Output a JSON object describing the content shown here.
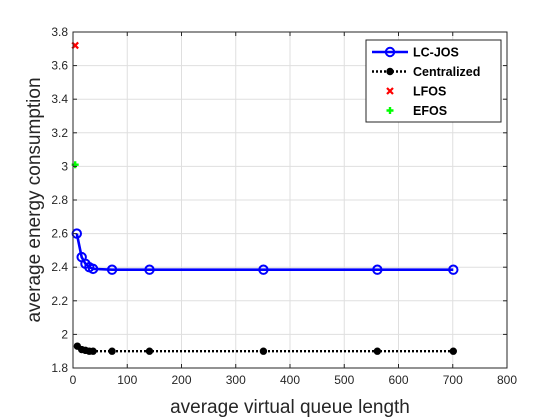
{
  "chart_data": {
    "type": "line",
    "title": "",
    "xlabel": "average virtual queue length",
    "ylabel": "average energy consumption",
    "xlim": [
      0,
      800
    ],
    "ylim": [
      1.8,
      3.8
    ],
    "xticks": [
      0,
      100,
      200,
      300,
      400,
      500,
      600,
      700,
      800
    ],
    "yticks": [
      1.8,
      2,
      2.2,
      2.4,
      2.6,
      2.8,
      3,
      3.2,
      3.4,
      3.6,
      3.8
    ],
    "xtick_labels": [
      "0",
      "100",
      "200",
      "300",
      "400",
      "500",
      "600",
      "700",
      "800"
    ],
    "ytick_labels": [
      "1.8",
      "2",
      "2.2",
      "2.4",
      "2.6",
      "2.8",
      "3",
      "3.2",
      "3.4",
      "3.6",
      "3.8"
    ],
    "grid": true,
    "legend_position": "top-right",
    "series": [
      {
        "name": "LC-JOS",
        "color": "#0000ff",
        "style": "solid-line-circle",
        "x": [
          7,
          16,
          23,
          30,
          37,
          72,
          141,
          351,
          561,
          701
        ],
        "y": [
          2.6,
          2.46,
          2.42,
          2.4,
          2.39,
          2.385,
          2.385,
          2.385,
          2.385,
          2.385
        ]
      },
      {
        "name": "Centralized",
        "color": "#000000",
        "style": "dotted-line-dot",
        "x": [
          8,
          16,
          23,
          30,
          37,
          72,
          141,
          351,
          561,
          701
        ],
        "y": [
          1.93,
          1.91,
          1.905,
          1.9,
          1.9,
          1.9,
          1.9,
          1.9,
          1.9,
          1.9
        ]
      },
      {
        "name": "LFOS",
        "color": "#ff0000",
        "style": "x-marker",
        "x": [
          4
        ],
        "y": [
          3.72
        ]
      },
      {
        "name": "EFOS",
        "color": "#00ff00",
        "style": "plus-marker",
        "x": [
          4
        ],
        "y": [
          3.01
        ]
      }
    ]
  }
}
